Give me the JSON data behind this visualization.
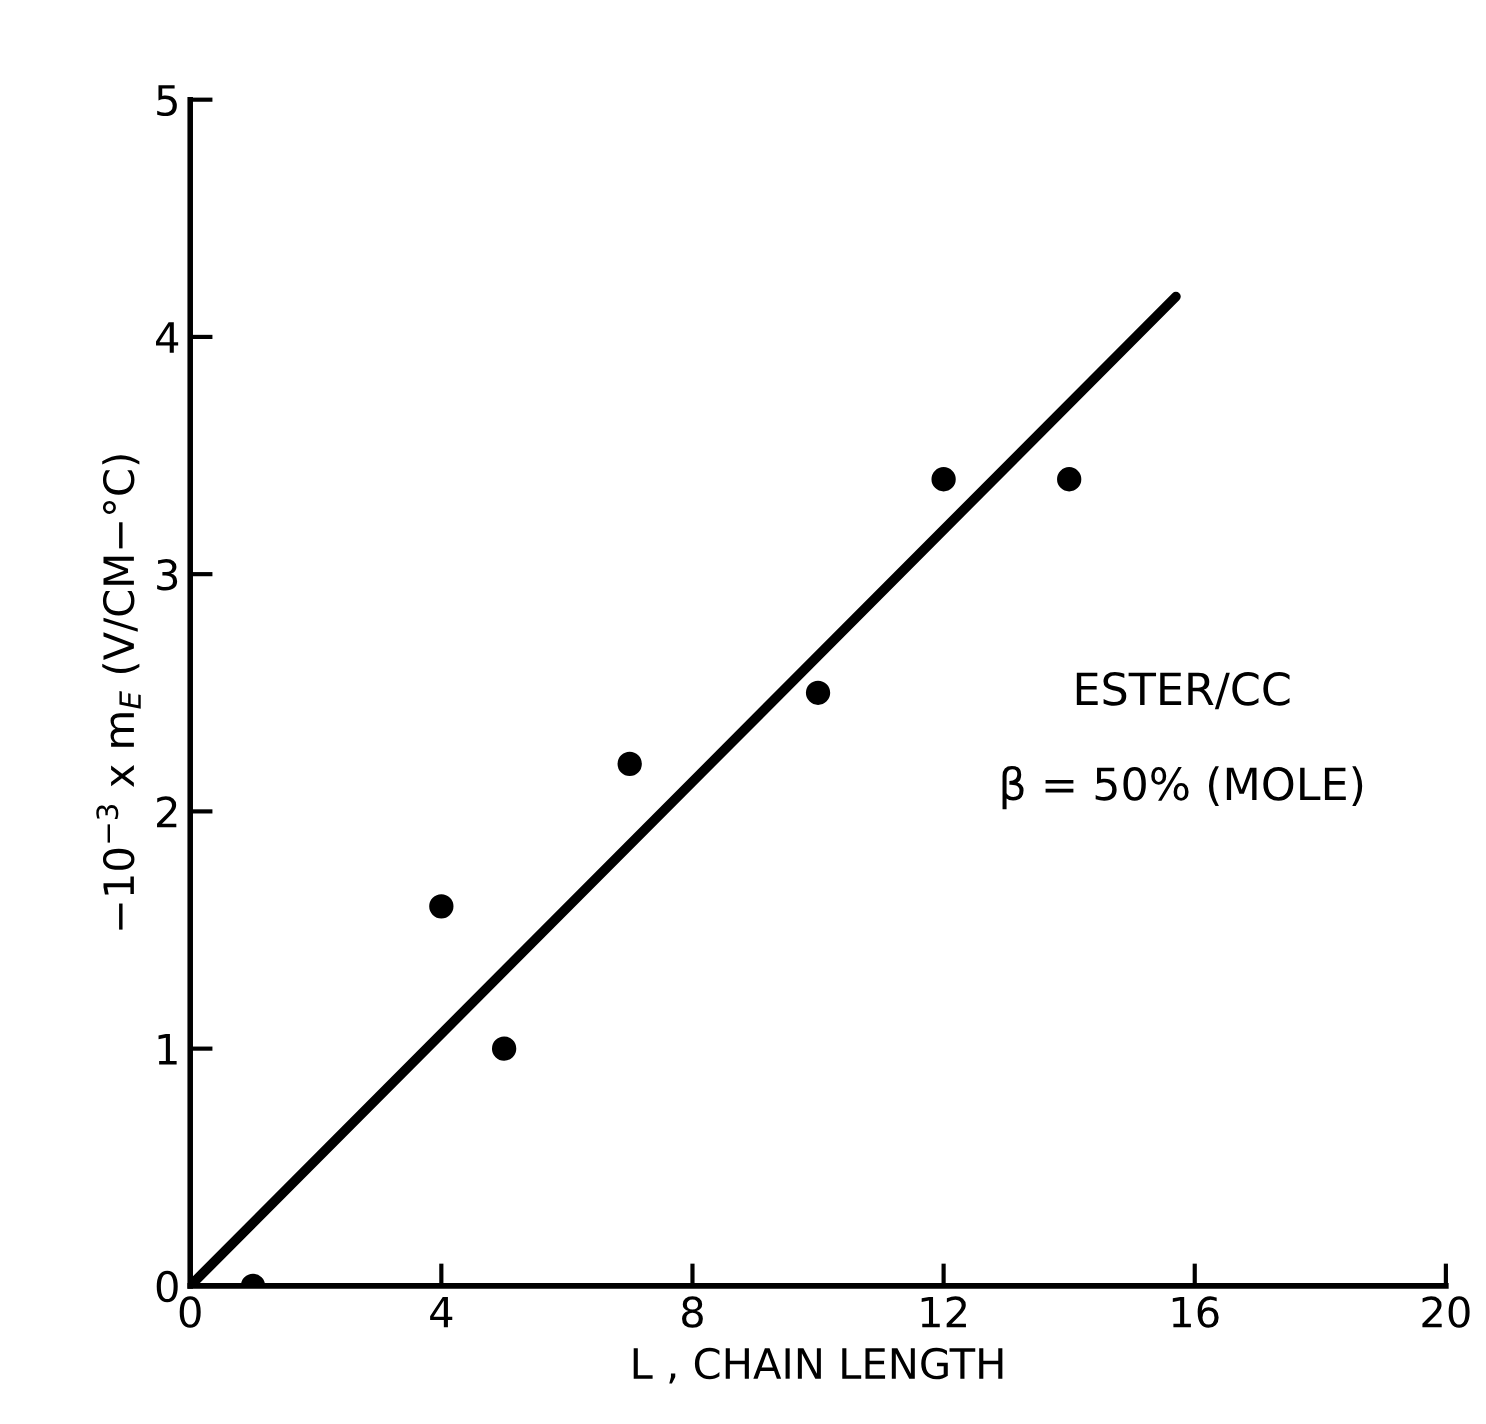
{
  "chart_data": {
    "type": "scatter",
    "xlabel": "L , CHAIN LENGTH",
    "ylabel": "−10$^{−3}$ x m$_{E}$ (V/CM−°C)",
    "xlim": [
      0,
      20
    ],
    "ylim": [
      0,
      5
    ],
    "xticks": [
      0,
      4,
      8,
      12,
      16,
      20
    ],
    "yticks": [
      0,
      1,
      2,
      3,
      4,
      5
    ],
    "grid": false,
    "legend": false,
    "series": [
      {
        "marker": "circle",
        "color": "#000000",
        "x": [
          1,
          4,
          5,
          7,
          10,
          12,
          14
        ],
        "values": [
          0,
          1.6,
          1.0,
          2.2,
          2.5,
          3.4,
          3.4
        ]
      },
      {
        "type": "line",
        "color": "#000000",
        "x": [
          0,
          15.7
        ],
        "values": [
          0,
          4.17
        ],
        "line_style": "solid"
      }
    ],
    "annotations": [
      "ESTER/CC",
      "β = 50% (MOLE)"
    ]
  }
}
